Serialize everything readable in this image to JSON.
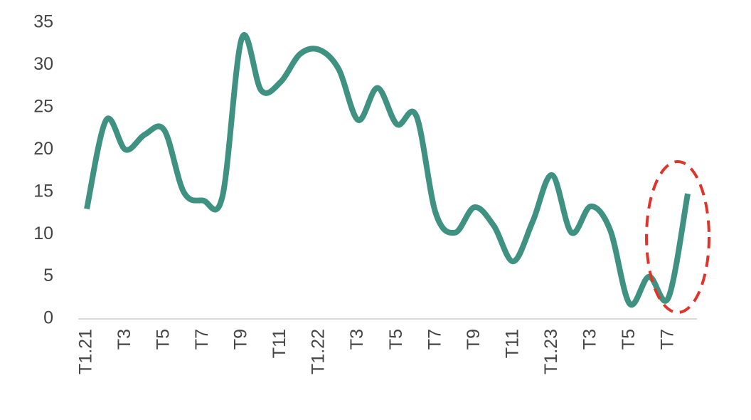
{
  "chart_data": {
    "type": "line",
    "categories": [
      "T1.21",
      null,
      "T3",
      null,
      "T5",
      null,
      "T7",
      null,
      "T9",
      null,
      "T11",
      null,
      "T1.22",
      null,
      "T3",
      null,
      "T5",
      null,
      "T7",
      null,
      "T9",
      null,
      "T11",
      null,
      "T1.23",
      null,
      "T3",
      null,
      "T5",
      null,
      "T7",
      null
    ],
    "series": [
      {
        "color": "#3f9282",
        "values": [
          13,
          23.5,
          20,
          21.8,
          22.3,
          15,
          14,
          14.5,
          33.2,
          27,
          28,
          31.3,
          31.8,
          29.5,
          23.5,
          27.3,
          23,
          24,
          12.5,
          10.2,
          13.2,
          11,
          6.8,
          11.5,
          17,
          10.2,
          13.3,
          10.5,
          1.8,
          5,
          2.5,
          14.8
        ]
      }
    ],
    "ylim": [
      0,
      35
    ],
    "yticks": [
      0,
      5,
      10,
      15,
      20,
      25,
      30,
      35
    ],
    "grid": false
  }
}
